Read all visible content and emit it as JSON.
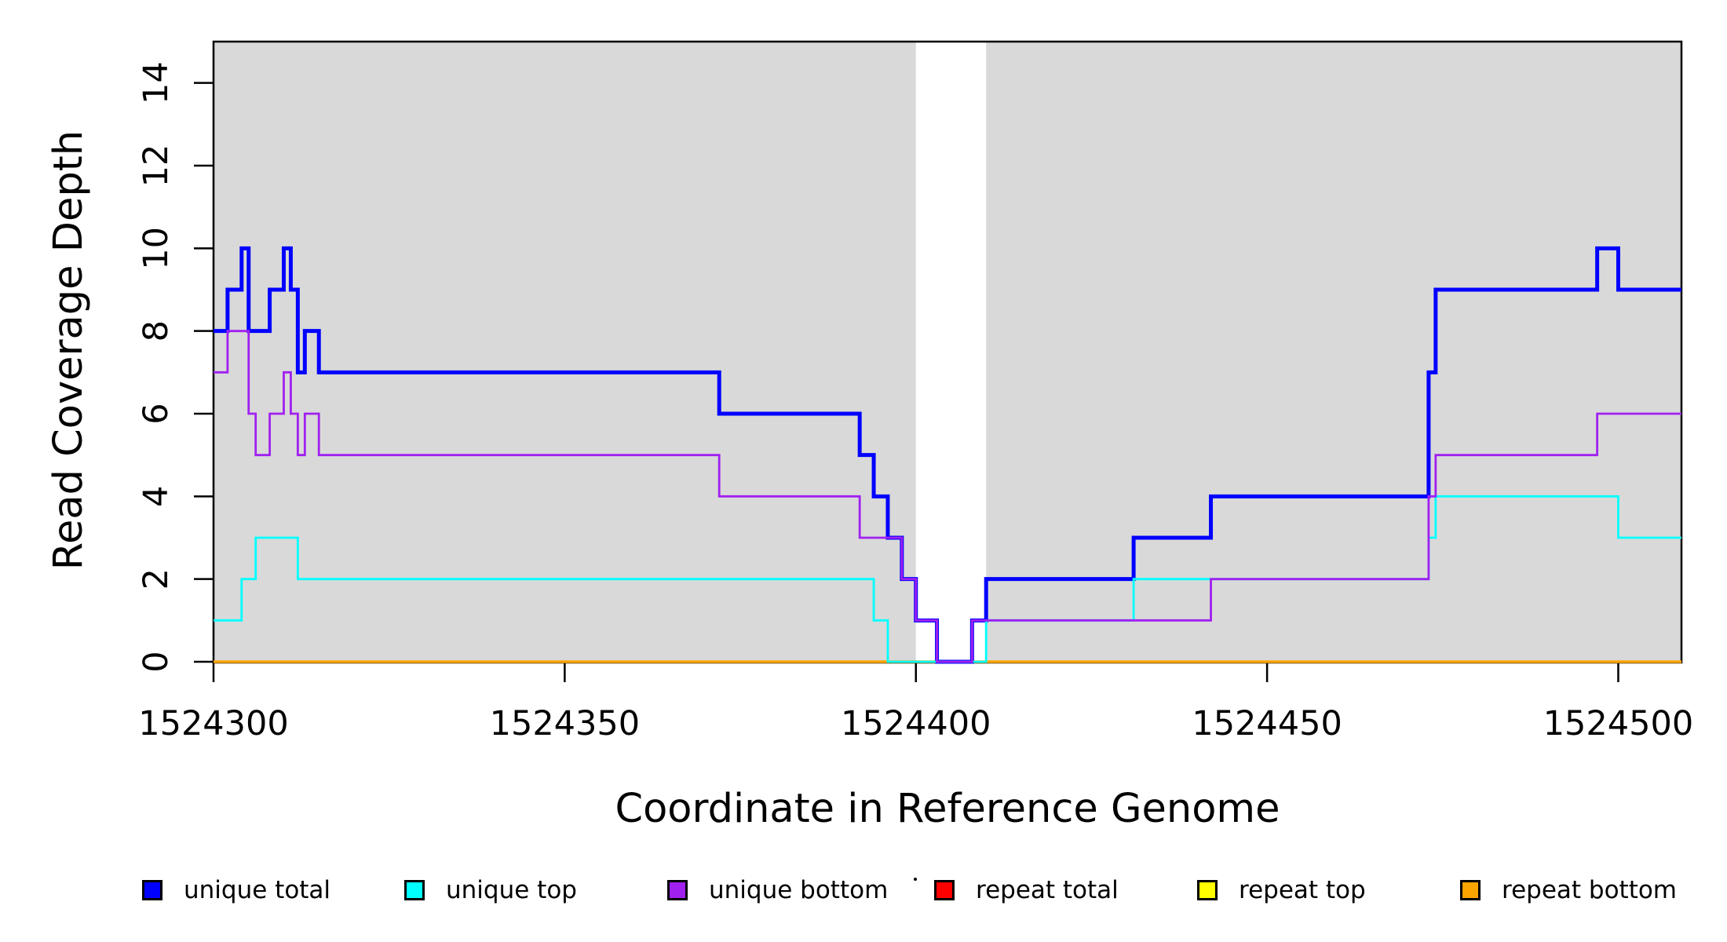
{
  "chart_data": {
    "type": "line",
    "step_mode": "after",
    "title": "",
    "xlabel": "Coordinate in Reference Genome",
    "ylabel": "Read Coverage Depth",
    "xlim": [
      1524300,
      1524509
    ],
    "ylim": [
      0,
      15
    ],
    "x_ticks": [
      1524300,
      1524350,
      1524400,
      1524450,
      1524500
    ],
    "y_ticks": [
      0,
      2,
      4,
      6,
      8,
      10,
      12,
      14
    ],
    "grid": false,
    "background_shading": {
      "color": "#D9D9D9",
      "regions": [
        [
          1524300,
          1524400
        ],
        [
          1524410,
          1524509
        ]
      ]
    },
    "unshaded_gap_region": [
      1524400,
      1524410
    ],
    "series": [
      {
        "name": "repeat total",
        "color": "#FF0000",
        "width": 3,
        "steps": [
          [
            1524300,
            0
          ],
          [
            1524509,
            0
          ]
        ]
      },
      {
        "name": "repeat top",
        "color": "#FFFF00",
        "width": 3,
        "steps": [
          [
            1524300,
            0
          ],
          [
            1524509,
            0
          ]
        ]
      },
      {
        "name": "repeat bottom",
        "color": "#FFA500",
        "width": 3.5,
        "steps": [
          [
            1524300,
            0
          ],
          [
            1524509,
            0
          ]
        ]
      },
      {
        "name": "unique total",
        "color": "#0000FF",
        "width": 5,
        "steps": [
          [
            1524300,
            8
          ],
          [
            1524302,
            9
          ],
          [
            1524304,
            10
          ],
          [
            1524305,
            8
          ],
          [
            1524308,
            9
          ],
          [
            1524310,
            10
          ],
          [
            1524311,
            9
          ],
          [
            1524312,
            7
          ],
          [
            1524313,
            8
          ],
          [
            1524315,
            7
          ],
          [
            1524372,
            6
          ],
          [
            1524392,
            5
          ],
          [
            1524394,
            4
          ],
          [
            1524396,
            3
          ],
          [
            1524398,
            2
          ],
          [
            1524400,
            1
          ],
          [
            1524403,
            0
          ],
          [
            1524408,
            1
          ],
          [
            1524410,
            2
          ],
          [
            1524431,
            3
          ],
          [
            1524442,
            4
          ],
          [
            1524473,
            7
          ],
          [
            1524474,
            9
          ],
          [
            1524497,
            10
          ],
          [
            1524500,
            9
          ],
          [
            1524509,
            9
          ]
        ]
      },
      {
        "name": "unique top",
        "color": "#00FFFF",
        "width": 2.8,
        "steps": [
          [
            1524300,
            1
          ],
          [
            1524304,
            2
          ],
          [
            1524306,
            3
          ],
          [
            1524312,
            2
          ],
          [
            1524394,
            1
          ],
          [
            1524396,
            0
          ],
          [
            1524410,
            1
          ],
          [
            1524431,
            2
          ],
          [
            1524473,
            3
          ],
          [
            1524474,
            4
          ],
          [
            1524500,
            3
          ],
          [
            1524509,
            3
          ]
        ]
      },
      {
        "name": "unique bottom",
        "color": "#A020F0",
        "width": 2.8,
        "steps": [
          [
            1524300,
            7
          ],
          [
            1524302,
            8
          ],
          [
            1524305,
            6
          ],
          [
            1524306,
            5
          ],
          [
            1524308,
            6
          ],
          [
            1524310,
            7
          ],
          [
            1524311,
            6
          ],
          [
            1524312,
            5
          ],
          [
            1524313,
            6
          ],
          [
            1524315,
            5
          ],
          [
            1524372,
            4
          ],
          [
            1524392,
            3
          ],
          [
            1524398,
            2
          ],
          [
            1524400,
            1
          ],
          [
            1524403,
            0
          ],
          [
            1524408,
            1
          ],
          [
            1524442,
            2
          ],
          [
            1524473,
            4
          ],
          [
            1524474,
            5
          ],
          [
            1524497,
            6
          ],
          [
            1524509,
            6
          ]
        ]
      }
    ],
    "legend": {
      "position": "bottom",
      "entries": [
        {
          "label": "unique total",
          "color": "#0000FF"
        },
        {
          "label": "unique top",
          "color": "#00FFFF"
        },
        {
          "label": "unique bottom",
          "color": "#A020F0"
        },
        {
          "label": "repeat total",
          "color": "#FF0000"
        },
        {
          "label": "repeat top",
          "color": "#FFFF00"
        },
        {
          "label": "repeat bottom",
          "color": "#FFA500"
        }
      ]
    }
  }
}
